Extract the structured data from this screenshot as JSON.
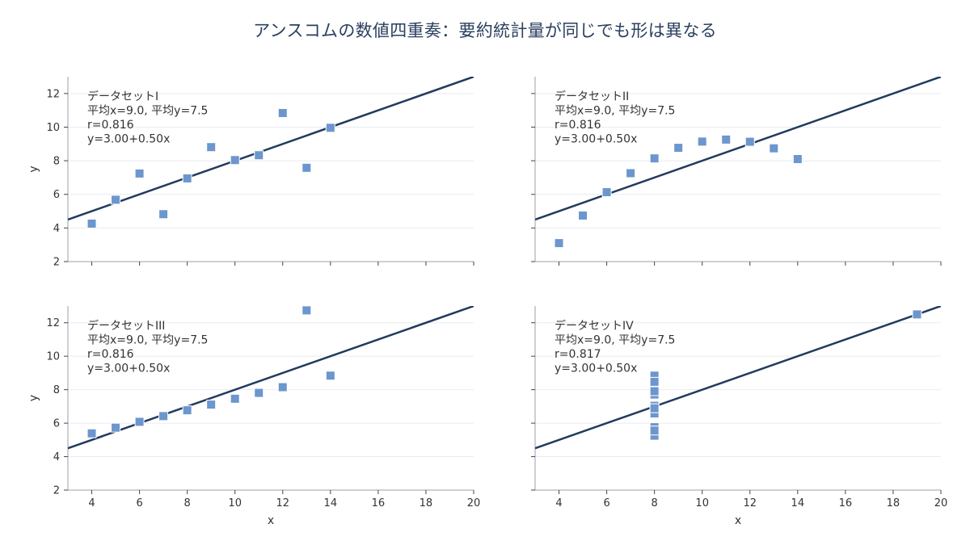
{
  "title": "アンスコムの数値四重奏：要約統計量が同じでも形は異なる",
  "chart_data": [
    {
      "type": "scatter",
      "panel": "top-left",
      "annotation": [
        "データセットI",
        "平均x=9.0, 平均y=7.5",
        "r=0.816",
        "y=3.00+0.50x"
      ],
      "x": [
        10,
        8,
        13,
        9,
        11,
        14,
        6,
        4,
        12,
        7,
        5
      ],
      "y": [
        8.04,
        6.95,
        7.58,
        8.81,
        8.33,
        9.96,
        7.24,
        4.26,
        10.84,
        4.82,
        5.68
      ],
      "fit": {
        "intercept": 3.0,
        "slope": 0.5
      },
      "xlabel": "",
      "ylabel": "y",
      "xlim": [
        3,
        20
      ],
      "ylim": [
        2,
        13
      ],
      "xticks": [
        4,
        6,
        8,
        10,
        12,
        14,
        16,
        18,
        20
      ],
      "yticks": [
        2,
        4,
        6,
        8,
        10,
        12
      ],
      "show_xticklabels": false,
      "show_yticklabels": true,
      "grid": "horizontal"
    },
    {
      "type": "scatter",
      "panel": "top-right",
      "annotation": [
        "データセットII",
        "平均x=9.0, 平均y=7.5",
        "r=0.816",
        "y=3.00+0.50x"
      ],
      "x": [
        10,
        8,
        13,
        9,
        11,
        14,
        6,
        4,
        12,
        7,
        5
      ],
      "y": [
        9.14,
        8.14,
        8.74,
        8.77,
        9.26,
        8.1,
        6.13,
        3.1,
        9.13,
        7.26,
        4.74
      ],
      "fit": {
        "intercept": 3.0,
        "slope": 0.5
      },
      "xlabel": "",
      "ylabel": "",
      "xlim": [
        3,
        20
      ],
      "ylim": [
        2,
        13
      ],
      "xticks": [
        4,
        6,
        8,
        10,
        12,
        14,
        16,
        18,
        20
      ],
      "yticks": [
        2,
        4,
        6,
        8,
        10,
        12
      ],
      "show_xticklabels": false,
      "show_yticklabels": false,
      "grid": "horizontal"
    },
    {
      "type": "scatter",
      "panel": "bottom-left",
      "annotation": [
        "データセットIII",
        "平均x=9.0, 平均y=7.5",
        "r=0.816",
        "y=3.00+0.50x"
      ],
      "x": [
        10,
        8,
        13,
        9,
        11,
        14,
        6,
        4,
        12,
        7,
        5
      ],
      "y": [
        7.46,
        6.77,
        12.74,
        7.11,
        7.81,
        8.84,
        6.08,
        5.39,
        8.15,
        6.42,
        5.73
      ],
      "fit": {
        "intercept": 3.0,
        "slope": 0.5
      },
      "xlabel": "x",
      "ylabel": "y",
      "xlim": [
        3,
        20
      ],
      "ylim": [
        2,
        13
      ],
      "xticks": [
        4,
        6,
        8,
        10,
        12,
        14,
        16,
        18,
        20
      ],
      "yticks": [
        2,
        4,
        6,
        8,
        10,
        12
      ],
      "show_xticklabels": true,
      "show_yticklabels": true,
      "grid": "horizontal"
    },
    {
      "type": "scatter",
      "panel": "bottom-right",
      "annotation": [
        "データセットIV",
        "平均x=9.0, 平均y=7.5",
        "r=0.817",
        "y=3.00+0.50x"
      ],
      "x": [
        8,
        8,
        8,
        8,
        8,
        8,
        8,
        19,
        8,
        8,
        8
      ],
      "y": [
        6.58,
        5.76,
        7.71,
        8.84,
        8.47,
        7.04,
        5.25,
        12.5,
        5.56,
        7.91,
        6.89
      ],
      "fit": {
        "intercept": 3.0,
        "slope": 0.5
      },
      "xlabel": "x",
      "ylabel": "",
      "xlim": [
        3,
        20
      ],
      "ylim": [
        2,
        13
      ],
      "xticks": [
        4,
        6,
        8,
        10,
        12,
        14,
        16,
        18,
        20
      ],
      "yticks": [
        2,
        4,
        6,
        8,
        10,
        12
      ],
      "show_xticklabels": true,
      "show_yticklabels": false,
      "grid": "horizontal"
    }
  ]
}
